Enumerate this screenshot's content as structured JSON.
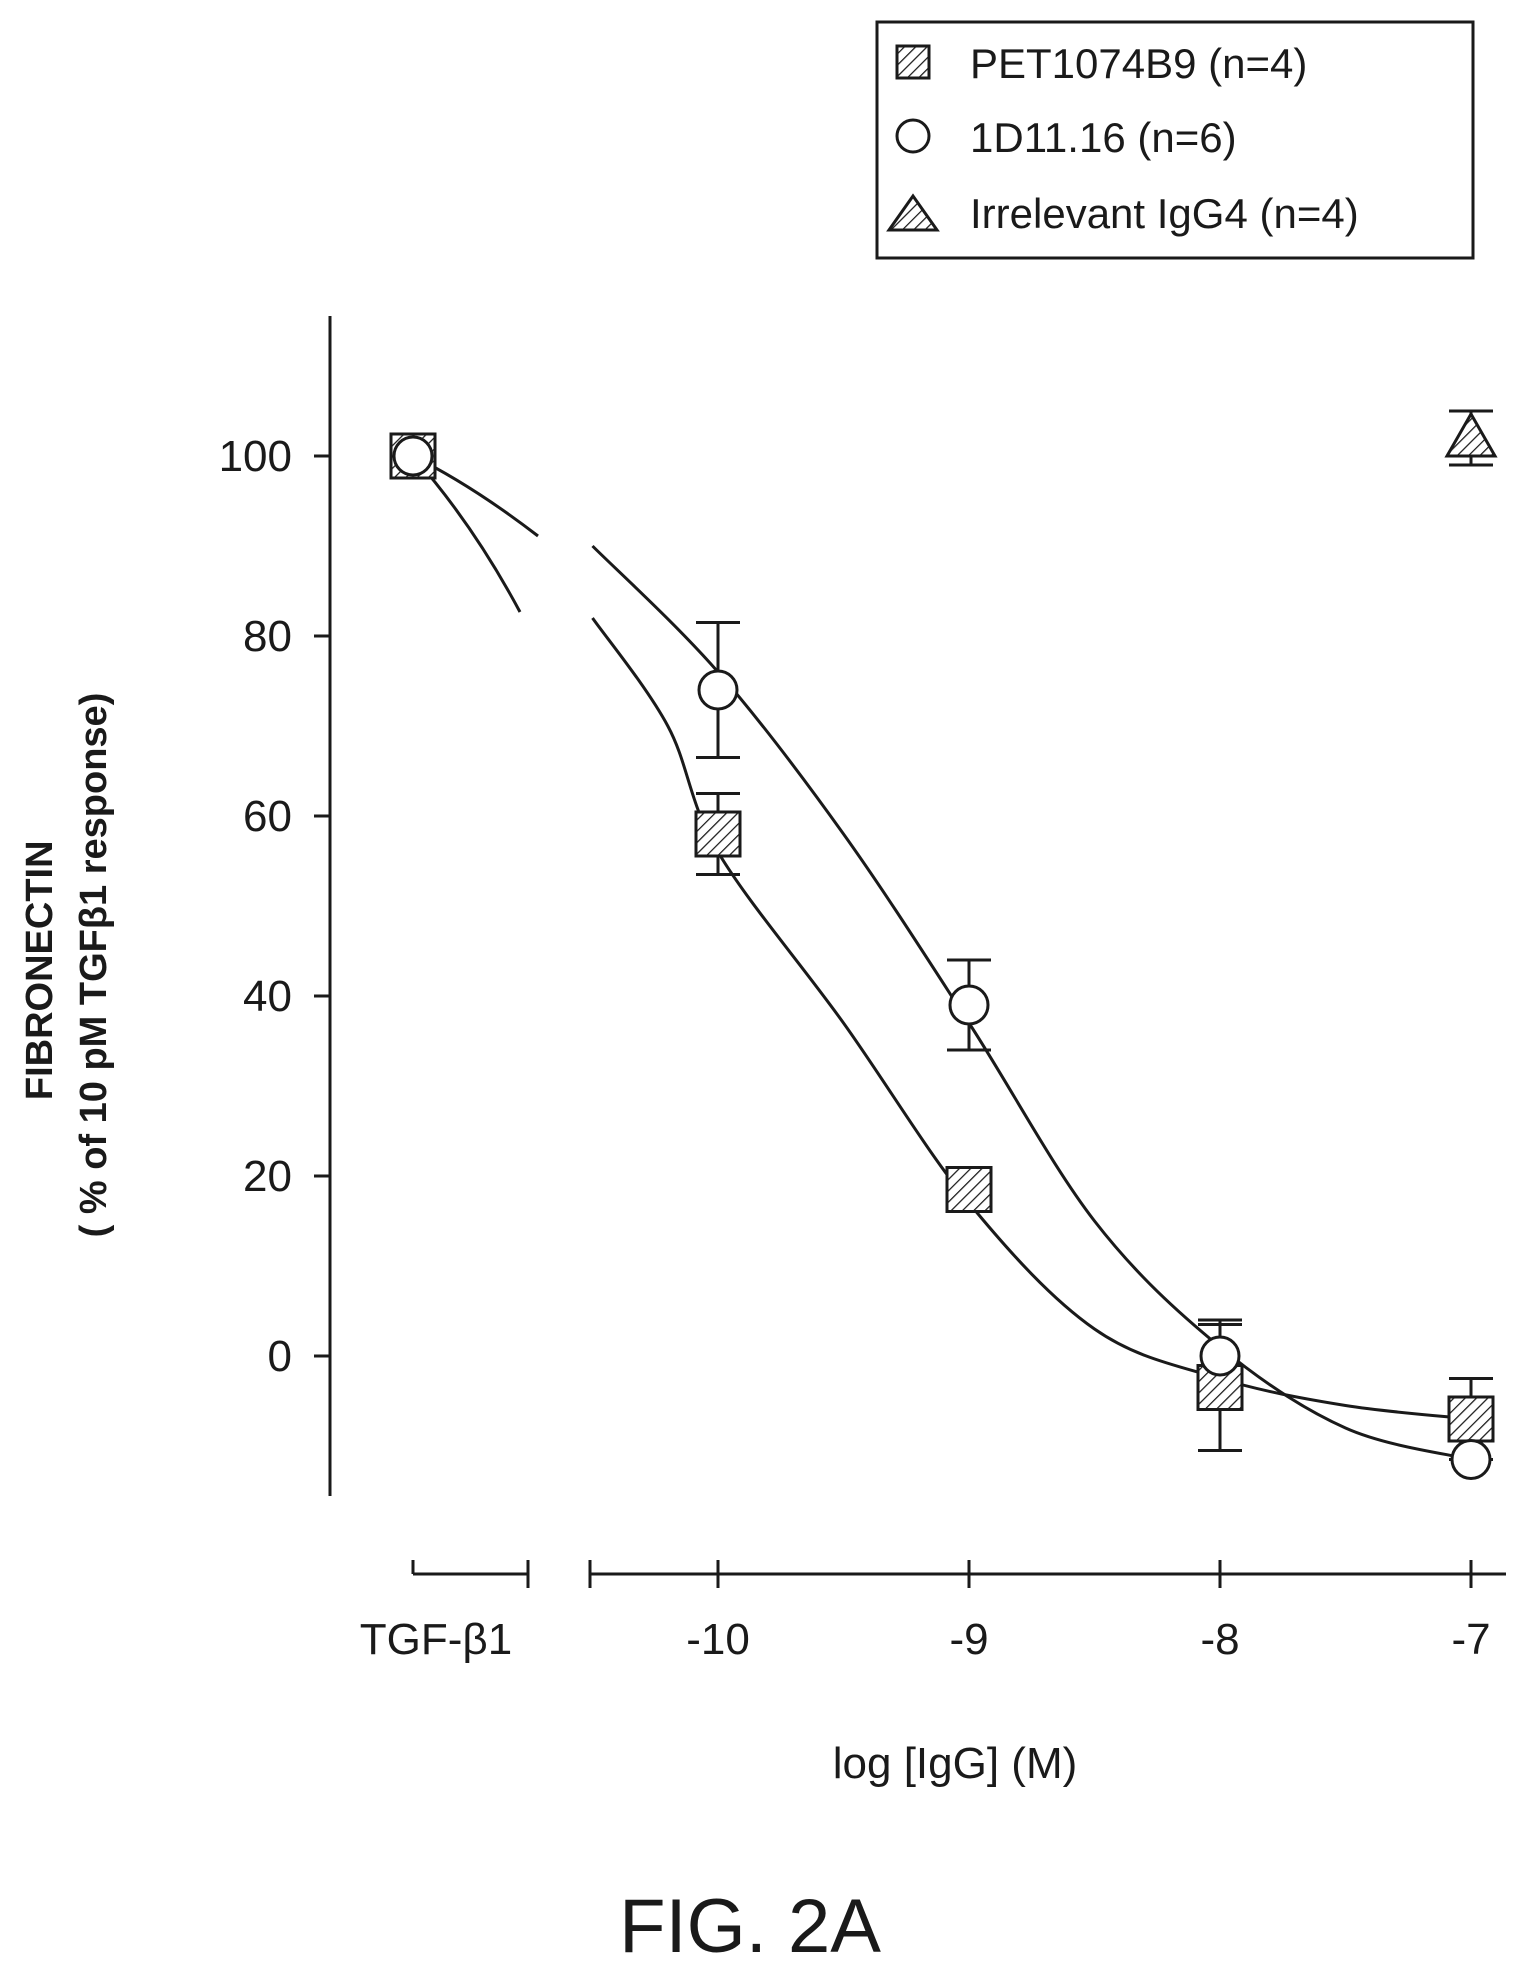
{
  "chart_data": {
    "type": "scatter",
    "xlabel": "log [IgG] (M)",
    "ylabel_lines": [
      "FIBRONECTIN",
      "( % of 10 pM TGFβ1 response)"
    ],
    "control_label": "TGF-β1",
    "x_ticks": [
      "-10",
      "-9",
      "-8",
      "-7"
    ],
    "y_ticks": [
      "0",
      "20",
      "40",
      "60",
      "80",
      "100"
    ],
    "ylim": [
      -15,
      115
    ],
    "xlim": [
      -10.5,
      -6.9
    ],
    "legend_position": "top-right",
    "series": [
      {
        "name": "PET1074B9 (n=4)",
        "marker": "hatched-square",
        "control_value": 100,
        "points": [
          {
            "x": -10,
            "y": 58,
            "err": 4.5
          },
          {
            "x": -9,
            "y": 18.5,
            "err": 0
          },
          {
            "x": -8,
            "y": -3.5,
            "err": 7
          },
          {
            "x": -7,
            "y": -7,
            "err": 4.5
          }
        ],
        "curve": [
          {
            "x": -10.5,
            "y": 82
          },
          {
            "x": -10.2,
            "y": 70
          },
          {
            "x": -10,
            "y": 56
          },
          {
            "x": -9.5,
            "y": 37
          },
          {
            "x": -9,
            "y": 17
          },
          {
            "x": -8.5,
            "y": 3
          },
          {
            "x": -8,
            "y": -2.5
          },
          {
            "x": -7.5,
            "y": -5.5
          },
          {
            "x": -7,
            "y": -7
          }
        ]
      },
      {
        "name": "1D11.16 (n=6)",
        "marker": "circle",
        "control_value": 100,
        "points": [
          {
            "x": -10,
            "y": 74,
            "err": 7.5
          },
          {
            "x": -9,
            "y": 39,
            "err": 5
          },
          {
            "x": -8,
            "y": 0,
            "err": 4
          },
          {
            "x": -7,
            "y": -11.5,
            "err": 0
          }
        ],
        "curve": [
          {
            "x": -10.5,
            "y": 90
          },
          {
            "x": -10,
            "y": 76
          },
          {
            "x": -9.5,
            "y": 58
          },
          {
            "x": -9,
            "y": 37
          },
          {
            "x": -8.5,
            "y": 15
          },
          {
            "x": -8,
            "y": 1
          },
          {
            "x": -7.5,
            "y": -8
          },
          {
            "x": -7,
            "y": -11.5
          }
        ]
      },
      {
        "name": "Irrelevant IgG4 (n=4)",
        "marker": "hatched-triangle",
        "control_value": null,
        "points": [
          {
            "x": -7,
            "y": 102,
            "err": 3
          }
        ],
        "curve": []
      }
    ],
    "caption": "FIG. 2A"
  }
}
